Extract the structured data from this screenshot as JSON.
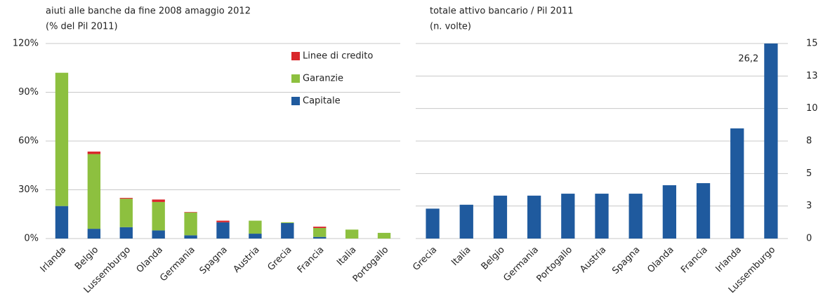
{
  "chart_data": [
    {
      "type": "stacked-bar",
      "title": "aiuti alle banche da fine 2008 amaggio 2012",
      "subtitle": "(% del Pil 2011)",
      "categories": [
        "Irlanda",
        "Belgio",
        "Lussemburgo",
        "Olanda",
        "Germania",
        "Spagna",
        "Austria",
        "Grecia",
        "Francia",
        "Italia",
        "Portogallo"
      ],
      "series": [
        {
          "name": "Capitale",
          "color": "#1f5a9e",
          "values": [
            20,
            6,
            7,
            5,
            2,
            10,
            3,
            9.5,
            1,
            0,
            0
          ]
        },
        {
          "name": "Garanzie",
          "color": "#8dc03f",
          "values": [
            82,
            46,
            17.5,
            17.5,
            14,
            0,
            8,
            0.5,
            5.5,
            5.5,
            3.5
          ]
        },
        {
          "name": "Linee di credito",
          "color": "#d9262a",
          "values": [
            0,
            1.5,
            0.5,
            1.5,
            0.3,
            1,
            0,
            0,
            0.8,
            0,
            0
          ]
        }
      ],
      "ylim": [
        0,
        120
      ],
      "yticks": [
        {
          "value": 0,
          "label": "0%"
        },
        {
          "value": 30,
          "label": "30%"
        },
        {
          "value": 60,
          "label": "60%"
        },
        {
          "value": 90,
          "label": "90%"
        },
        {
          "value": 120,
          "label": "120%"
        }
      ],
      "grid": true,
      "legend": "top-right"
    },
    {
      "type": "bar",
      "title": "totale attivo bancario / Pil 2011",
      "subtitle": "(n. volte)",
      "categories": [
        "Grecia",
        "Italia",
        "Belgio",
        "Germania",
        "Portogallo",
        "Austria",
        "Spagna",
        "Olanda",
        "Francia",
        "Irlanda",
        "Lussemburgo"
      ],
      "values": [
        2.3,
        2.6,
        3.3,
        3.3,
        3.45,
        3.45,
        3.45,
        4.1,
        4.26,
        8.47,
        26.2
      ],
      "value_labels": [
        null,
        null,
        null,
        null,
        null,
        null,
        null,
        null,
        null,
        null,
        "26,2"
      ],
      "color": "#1f5a9e",
      "ylim": [
        0,
        15
      ],
      "yticks": [
        0,
        {
          "value": 2.5,
          "label": "3"
        },
        5,
        {
          "value": 7.5,
          "label": "8"
        },
        10,
        {
          "value": 12.5,
          "label": "13"
        },
        15
      ],
      "grid": true,
      "axis_side": "right"
    }
  ]
}
